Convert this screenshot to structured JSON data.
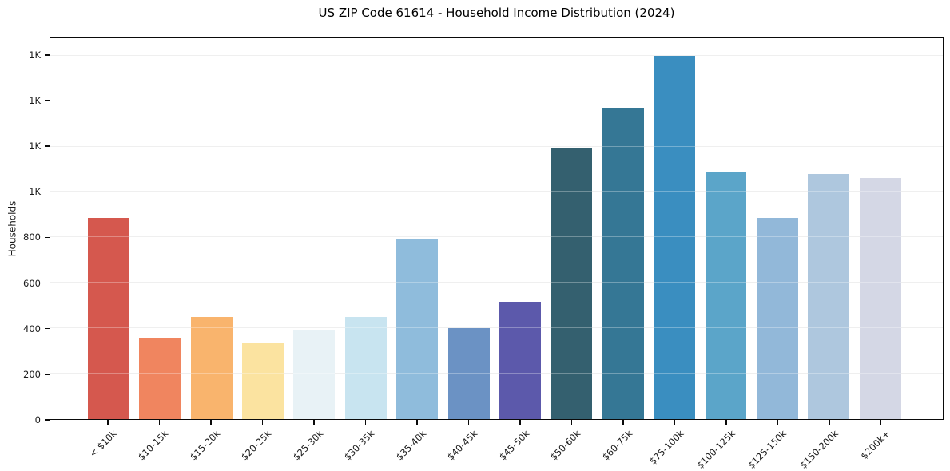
{
  "chart_data": {
    "type": "bar",
    "title": "US ZIP Code 61614 - Household Income Distribution (2024)",
    "xlabel": "",
    "ylabel": "Households",
    "categories": [
      "< $10k",
      "$10-15k",
      "$15-20k",
      "$20-25k",
      "$25-30k",
      "$30-35k",
      "$35-40k",
      "$40-45k",
      "$45-50k",
      "$50-60k",
      "$60-75k",
      "$75-100k",
      "$100-125k",
      "$125-150k",
      "$150-200k",
      "$200k+"
    ],
    "values": [
      885,
      355,
      450,
      335,
      390,
      450,
      790,
      400,
      515,
      1195,
      1370,
      1600,
      1085,
      885,
      1080,
      1060
    ],
    "bar_colors": [
      "#d5584e",
      "#f0855f",
      "#f9b46d",
      "#fbe3a0",
      "#e8f2f6",
      "#c8e4f0",
      "#8fbcdc",
      "#6b92c4",
      "#5c59ab",
      "#34606f",
      "#357795",
      "#3a8ec0",
      "#5ba5c9",
      "#92b8d9",
      "#aec7de",
      "#d4d7e5"
    ],
    "ylim": [
      0,
      1680
    ],
    "yticks": [
      {
        "value": 0,
        "label": "0"
      },
      {
        "value": 200,
        "label": "200"
      },
      {
        "value": 400,
        "label": "400"
      },
      {
        "value": 600,
        "label": "600"
      },
      {
        "value": 800,
        "label": "800"
      },
      {
        "value": 1000,
        "label": "1K"
      },
      {
        "value": 1200,
        "label": "1K"
      },
      {
        "value": 1400,
        "label": "1K"
      },
      {
        "value": 1600,
        "label": "1K"
      }
    ],
    "grid": "horizontal",
    "grid_above_bars": true,
    "legend": "none",
    "x_tick_rotation": 45
  },
  "colors": {
    "background": "#ffffff",
    "axis": "#0a0a0a",
    "grid": "#e9e9e9",
    "text": "#1a1a1a"
  }
}
